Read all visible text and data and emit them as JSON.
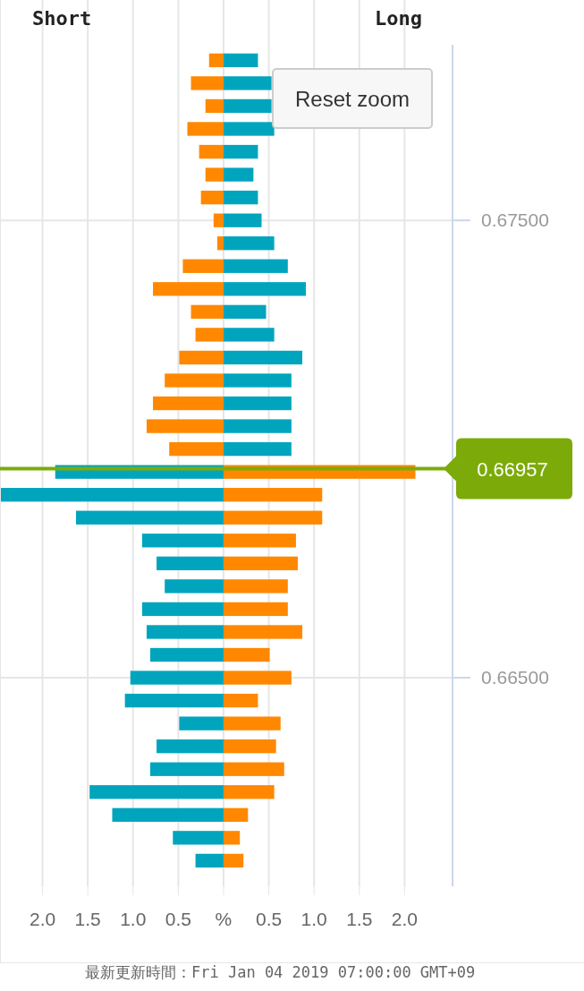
{
  "chart_data": {
    "type": "bar",
    "orientation": "horizontal",
    "stacked": true,
    "x": [
      0.6785,
      0.678,
      0.6775,
      0.677,
      0.6765,
      0.676,
      0.6755,
      0.675,
      0.6745,
      0.674,
      0.6735,
      0.673,
      0.6725,
      0.672,
      0.6715,
      0.671,
      0.6705,
      0.67,
      0.6695,
      0.669,
      0.6685,
      0.668,
      0.6675,
      0.667,
      0.6665,
      0.666,
      0.6655,
      0.665,
      0.6645,
      0.664,
      0.6635,
      0.663,
      0.6625,
      0.662,
      0.6615,
      0.661
    ],
    "series": [
      {
        "colors": [
          "#ff8800",
          "#ff8800",
          "#ff8800",
          "#ff8800",
          "#ff8800",
          "#ff8800",
          "#ff8800",
          "#ff8800",
          "#ff8800",
          "#ff8800",
          "#ff8800",
          "#ff8800",
          "#ff8800",
          "#ff8800",
          "#ff8800",
          "#ff8800",
          "#ff8800",
          "#ff8800",
          "#00a5bd",
          "#00a5bd",
          "#00a5bd",
          "#00a5bd",
          "#00a5bd",
          "#00a5bd",
          "#00a5bd",
          "#00a5bd",
          "#00a5bd",
          "#00a5bd",
          "#00a5bd",
          "#00a5bd",
          "#00a5bd",
          "#00a5bd",
          "#00a5bd",
          "#00a5bd",
          "#00a5bd",
          "#00a5bd"
        ],
        "values": [
          -0.16,
          -0.36,
          -0.2,
          -0.4,
          -0.27,
          -0.2,
          -0.25,
          -0.11,
          -0.07,
          -0.45,
          -0.78,
          -0.36,
          -0.31,
          -0.49,
          -0.65,
          -0.78,
          -0.85,
          -0.6,
          -1.86,
          -2.46,
          -1.63,
          -0.9,
          -0.74,
          -0.65,
          -0.9,
          -0.85,
          -0.81,
          -1.03,
          -1.09,
          -0.49,
          -0.74,
          -0.81,
          -1.48,
          -1.23,
          -0.56,
          -0.31
        ]
      },
      {
        "colors": [
          "#00a5bd",
          "#00a5bd",
          "#00a5bd",
          "#00a5bd",
          "#00a5bd",
          "#00a5bd",
          "#00a5bd",
          "#00a5bd",
          "#00a5bd",
          "#00a5bd",
          "#00a5bd",
          "#00a5bd",
          "#00a5bd",
          "#00a5bd",
          "#00a5bd",
          "#00a5bd",
          "#00a5bd",
          "#00a5bd",
          "#ff8800",
          "#ff8800",
          "#ff8800",
          "#ff8800",
          "#ff8800",
          "#ff8800",
          "#ff8800",
          "#ff8800",
          "#ff8800",
          "#ff8800",
          "#ff8800",
          "#ff8800",
          "#ff8800",
          "#ff8800",
          "#ff8800",
          "#ff8800",
          "#ff8800",
          "#ff8800"
        ],
        "values": [
          0.38,
          0.53,
          0.53,
          0.56,
          0.38,
          0.33,
          0.38,
          0.42,
          0.56,
          0.71,
          0.91,
          0.47,
          0.56,
          0.87,
          0.75,
          0.75,
          0.75,
          0.75,
          2.12,
          1.09,
          1.09,
          0.8,
          0.82,
          0.71,
          0.71,
          0.87,
          0.51,
          0.75,
          0.38,
          0.63,
          0.58,
          0.67,
          0.56,
          0.27,
          0.18,
          0.22
        ]
      }
    ],
    "xlim": [
      -2.47,
      2.53
    ],
    "xticks": [
      {
        "value": -2,
        "label": "2.0"
      },
      {
        "value": -1.5,
        "label": "1.5"
      },
      {
        "value": -1,
        "label": "1.0"
      },
      {
        "value": -0.5,
        "label": "0.5"
      },
      {
        "value": 0,
        "label": "%"
      },
      0.5,
      {
        "value": 1,
        "label": "1.0"
      },
      1.5,
      {
        "value": 2,
        "label": "2.0"
      }
    ],
    "ylim": [
      0.66044,
      0.67884
    ],
    "yticks": [
      {
        "value": 0.675,
        "label": "0.67500"
      },
      {
        "value": 0.665,
        "label": "0.66500"
      }
    ],
    "grid": true,
    "ref_lines": [
      {
        "axis": "y",
        "value": 0.66957,
        "label": "0.66957",
        "color": "#7cab09"
      }
    ],
    "annotations": [
      "Short",
      "Long",
      "Reset zoom",
      "最新更新時間：Fri Jan 04 2019 07:00:00 GMT+09"
    ]
  }
}
